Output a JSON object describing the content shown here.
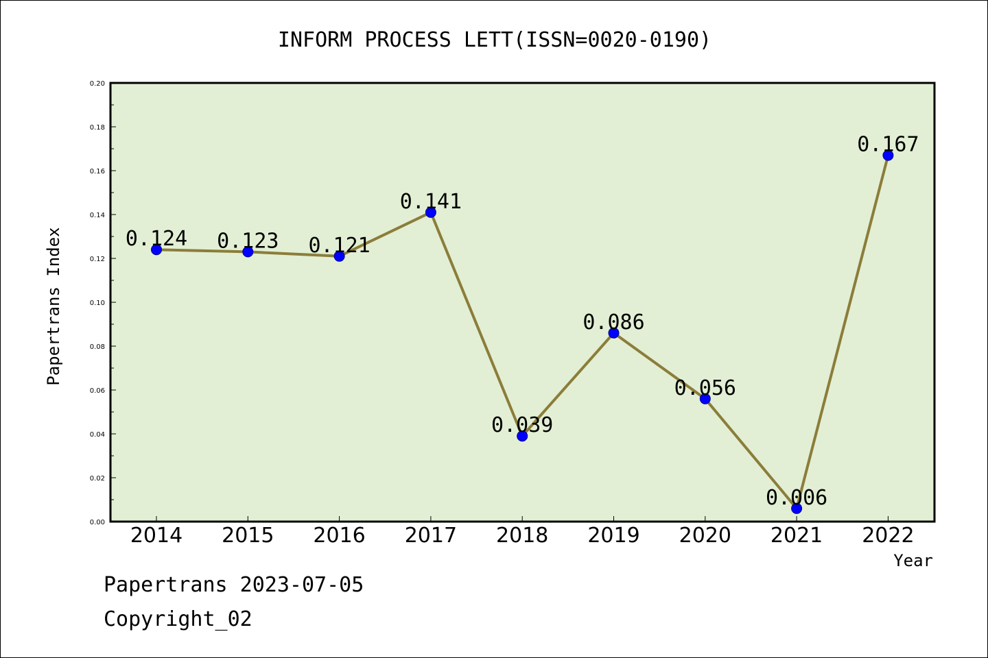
{
  "chart_data": {
    "type": "line",
    "title": "INFORM PROCESS LETT(ISSN=0020-0190)",
    "xlabel": "Year",
    "ylabel": "Papertrans Index",
    "categories": [
      "2014",
      "2015",
      "2016",
      "2017",
      "2018",
      "2019",
      "2020",
      "2021",
      "2022"
    ],
    "series": [
      {
        "values": [
          0.124,
          0.123,
          0.121,
          0.141,
          0.039,
          0.086,
          0.056,
          0.006,
          0.167
        ],
        "data_labels": [
          "0.124",
          "0.123",
          "0.121",
          "0.141",
          "0.039",
          "0.086",
          "0.056",
          "0.006",
          "0.167"
        ],
        "line_color": "#8b7d3a",
        "marker_color": "#0000ff"
      }
    ],
    "ylim": [
      0,
      0.2
    ],
    "yticks": [
      "0.00",
      "0.02",
      "0.04",
      "0.06",
      "0.08",
      "0.10",
      "0.12",
      "0.14",
      "0.16",
      "0.18",
      "0.20"
    ],
    "plot_background": "#e2efd4",
    "grid": false,
    "legend": "none"
  },
  "footer": {
    "line1": "Papertrans 2023-07-05",
    "line2": "Copyright_02"
  }
}
